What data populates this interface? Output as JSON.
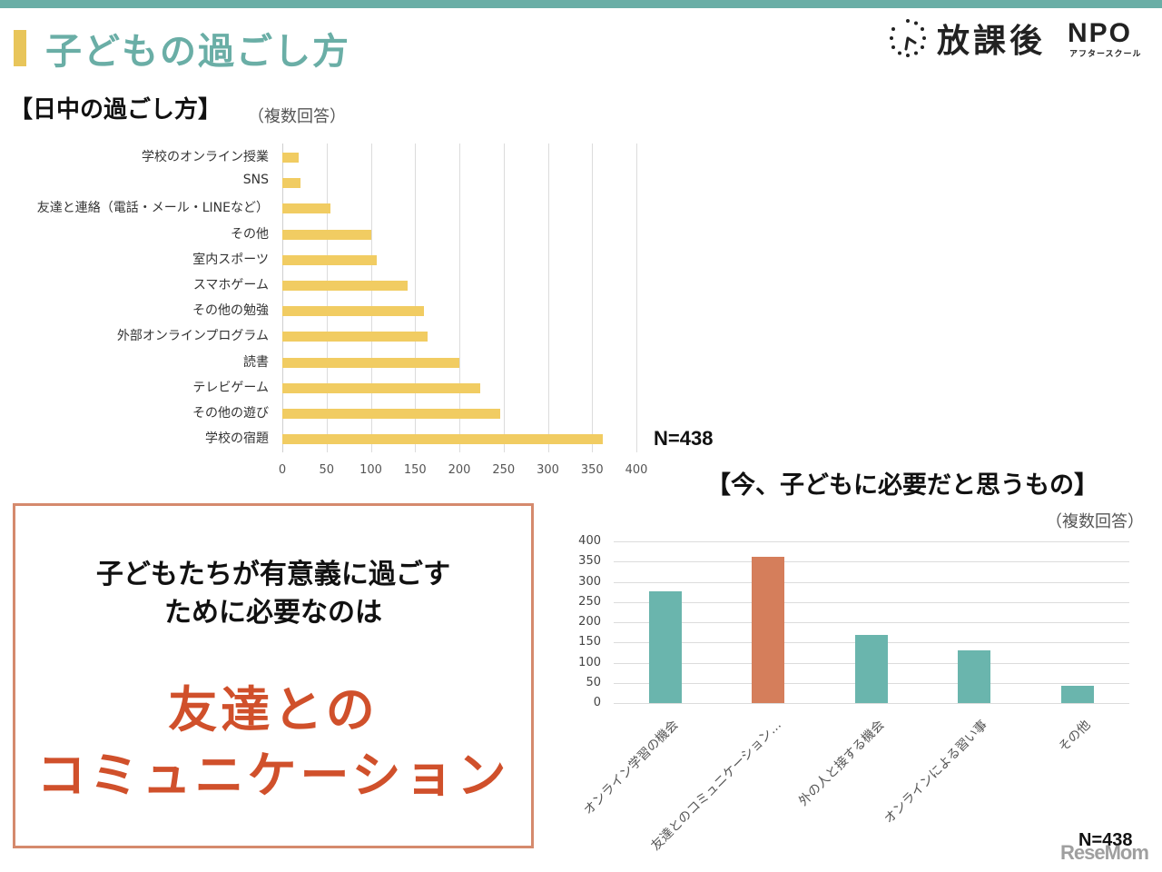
{
  "header": {
    "title": "子どもの過ごし方",
    "logo": {
      "main": "放課後",
      "npo": "NPO",
      "sub": "アフタースクール"
    },
    "colors": {
      "topbar": "#6aaea6",
      "accent": "#e8c55a"
    }
  },
  "section1": {
    "title": "【日中の過ごし方】",
    "note": "（複数回答）",
    "n_label": "N=438"
  },
  "section2": {
    "title": "【今、子どもに必要だと思うもの】",
    "note": "（複数回答）",
    "n_label": "N=438"
  },
  "callout": {
    "question_line1": "子どもたちが有意義に過ごす",
    "question_line2": "ために必要なのは",
    "answer_line1": "友達との",
    "answer_line2": "コミュニケーション"
  },
  "watermark": "ReseMom",
  "chart_data": [
    {
      "type": "bar",
      "orientation": "horizontal",
      "title": "【日中の過ごし方】（複数回答）",
      "categories": [
        "学校のオンライン授業",
        "SNS",
        "友達と連絡（電話・メール・LINEなど）",
        "その他",
        "室内スポーツ",
        "スマホゲーム",
        "その他の勉強",
        "外部オンラインプログラム",
        "読書",
        "テレビゲーム",
        "その他の遊び",
        "学校の宿題"
      ],
      "values": [
        18,
        20,
        54,
        101,
        107,
        142,
        160,
        164,
        200,
        224,
        246,
        362
      ],
      "xlim": [
        0,
        400
      ],
      "xticks": [
        "0",
        "50",
        "100",
        "150",
        "200",
        "250",
        "300",
        "350",
        "400"
      ],
      "grid": true,
      "color": "#f1cc62",
      "annotation": "N=438"
    },
    {
      "type": "bar",
      "orientation": "vertical",
      "title": "【今、子どもに必要だと思うもの】（複数回答）",
      "categories": [
        "オンライン学習の機会",
        "友達とのコミュニケーション…",
        "外の人と接する機会",
        "オンラインによる習い事",
        "その他"
      ],
      "values": [
        277,
        362,
        169,
        130,
        42
      ],
      "ylim": [
        0,
        400
      ],
      "yticks": [
        "0",
        "50",
        "100",
        "150",
        "200",
        "250",
        "300",
        "350",
        "400"
      ],
      "grid": true,
      "colors": [
        "#6ab5ad",
        "#d57e5b",
        "#6ab5ad",
        "#6ab5ad",
        "#6ab5ad"
      ],
      "highlight_index": 1,
      "annotation": "N=438"
    }
  ]
}
